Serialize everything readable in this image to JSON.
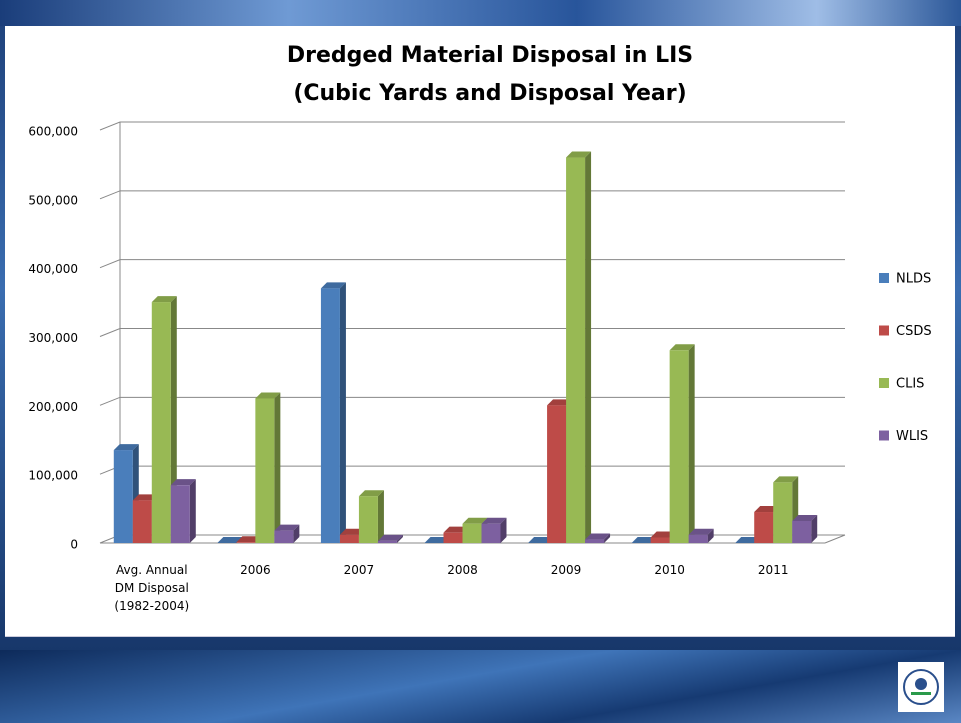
{
  "chart_data": {
    "type": "bar",
    "title": "Dredged Material Disposal in LIS",
    "subtitle": "(Cubic Yards  and Disposal Year)",
    "categories": [
      "Avg. Annual\nDM Disposal\n(1982-2004)",
      "2006",
      "2007",
      "2008",
      "2009",
      "2010",
      "2011"
    ],
    "series": [
      {
        "name": "NLDS",
        "color": "#4a7ebb",
        "values": [
          135000,
          0,
          370000,
          0,
          0,
          0,
          0
        ]
      },
      {
        "name": "CSDS",
        "color": "#be4b48",
        "values": [
          62000,
          1000,
          12000,
          15000,
          200000,
          8000,
          45000
        ]
      },
      {
        "name": "CLIS",
        "color": "#98b954",
        "values": [
          350000,
          210000,
          68000,
          28000,
          560000,
          280000,
          88000
        ]
      },
      {
        "name": "WLIS",
        "color": "#7d60a0",
        "values": [
          84000,
          18000,
          3000,
          28000,
          5000,
          12000,
          32000
        ]
      }
    ],
    "ylim": [
      0,
      600000
    ],
    "yticks": [
      0,
      {
        "value": 100000,
        "label": "100,000"
      },
      {
        "value": 200000,
        "label": "200,000"
      },
      {
        "value": 300000,
        "label": "300,000"
      },
      {
        "value": 400000,
        "label": "400,000"
      },
      {
        "value": 500000,
        "label": "500,000"
      },
      {
        "value": 600000,
        "label": "600,000"
      }
    ],
    "grid": true,
    "legend": "right"
  }
}
